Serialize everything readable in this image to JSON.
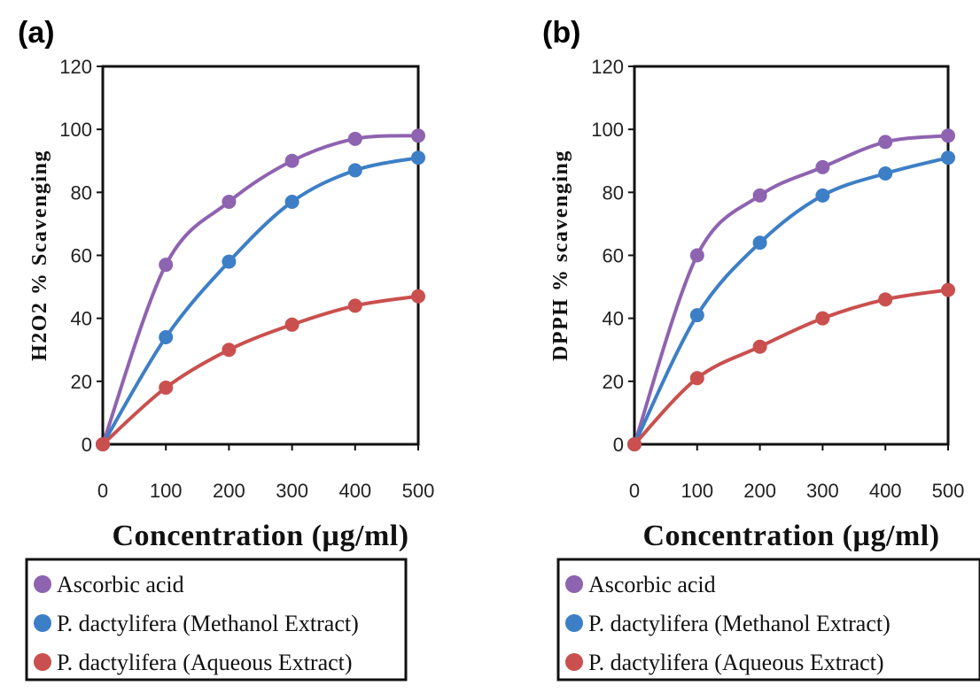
{
  "chart_data": [
    {
      "type": "line",
      "panel_label": "(a)",
      "xlabel": "Concentration (µg/ml)",
      "ylabel": "H2O2 % Scavenging",
      "x": [
        0,
        100,
        200,
        300,
        400,
        500
      ],
      "xticks": [
        "0",
        "100",
        "200",
        "300",
        "400",
        "500"
      ],
      "yticks": [
        "0",
        "20",
        "40",
        "60",
        "80",
        "100",
        "120"
      ],
      "xlim": [
        0,
        500
      ],
      "ylim": [
        0,
        120
      ],
      "grid": false,
      "legend_position": "bottom",
      "series": [
        {
          "name": "Ascorbic acid",
          "color": "#8e63b0",
          "values": [
            0,
            57,
            77,
            90,
            97,
            98
          ]
        },
        {
          "name": "P. dactylifera (Methanol Extract)",
          "color": "#3d7fc6",
          "values": [
            0,
            34,
            58,
            77,
            87,
            91
          ]
        },
        {
          "name": "P. dactylifera (Aqueous Extract)",
          "color": "#c9504e",
          "values": [
            0,
            18,
            30,
            38,
            44,
            47
          ]
        }
      ]
    },
    {
      "type": "line",
      "panel_label": "(b)",
      "xlabel": "Concentration (µg/ml)",
      "ylabel": "DPPH % scavenging",
      "x": [
        0,
        100,
        200,
        300,
        400,
        500
      ],
      "xticks": [
        "0",
        "100",
        "200",
        "300",
        "400",
        "500"
      ],
      "yticks": [
        "0",
        "20",
        "40",
        "60",
        "80",
        "100",
        "120"
      ],
      "xlim": [
        0,
        500
      ],
      "ylim": [
        0,
        120
      ],
      "grid": false,
      "legend_position": "bottom",
      "series": [
        {
          "name": "Ascorbic acid",
          "color": "#8e63b0",
          "values": [
            0,
            60,
            79,
            88,
            96,
            98
          ]
        },
        {
          "name": "P. dactylifera (Methanol Extract)",
          "color": "#3d7fc6",
          "values": [
            0,
            41,
            64,
            79,
            86,
            91
          ]
        },
        {
          "name": "P. dactylifera (Aqueous Extract)",
          "color": "#c9504e",
          "values": [
            0,
            21,
            31,
            40,
            46,
            49
          ]
        }
      ]
    }
  ]
}
